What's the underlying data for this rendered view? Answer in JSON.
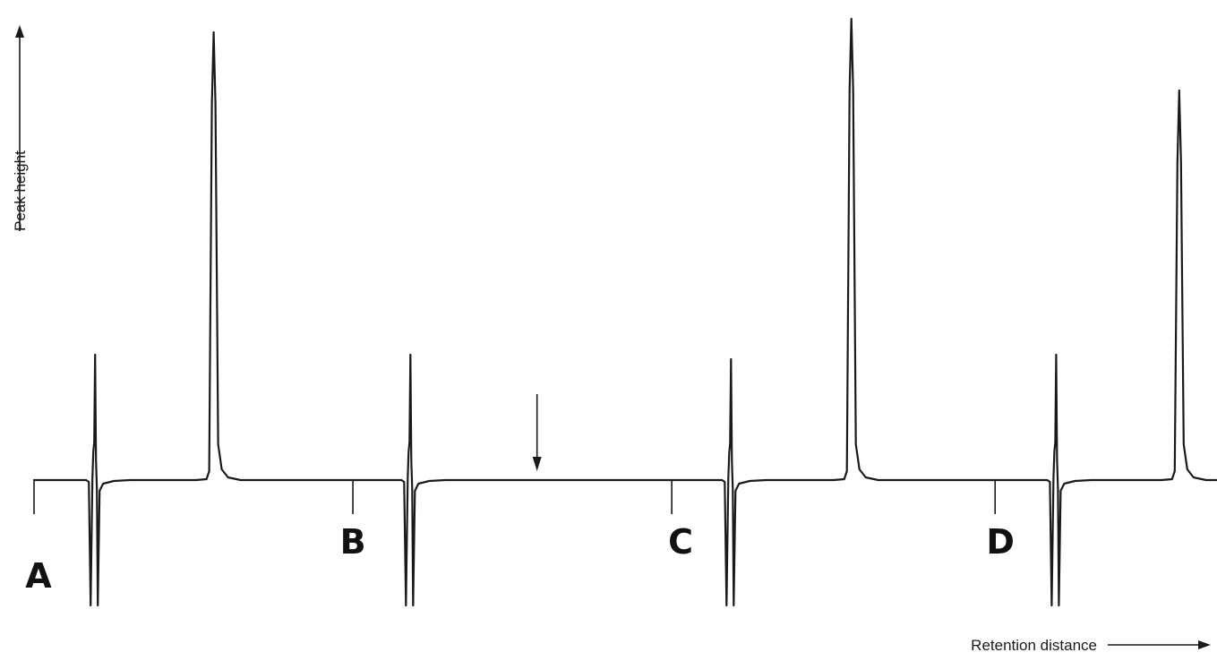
{
  "chart_data": {
    "type": "line",
    "title": "",
    "xlabel": "Retention distance",
    "ylabel": "Peak height",
    "grid": false,
    "legend": "none",
    "markers": [
      {
        "label": "A",
        "x": 0
      },
      {
        "label": "B",
        "x": 35.5
      },
      {
        "label": "C",
        "x": 71
      },
      {
        "label": "D",
        "x": 107
      }
    ],
    "injection_disturbances": [
      {
        "x": 6.7,
        "up": 0.28,
        "down": -0.28
      },
      {
        "x": 41.8,
        "up": 0.28,
        "down": -0.28
      },
      {
        "x": 77.5,
        "up": 0.27,
        "down": -0.28
      },
      {
        "x": 113.7,
        "up": 0.28,
        "down": -0.28
      }
    ],
    "peaks": [
      {
        "x": 20,
        "height": 1.0
      },
      {
        "x": 91,
        "height": 1.03
      },
      {
        "x": 127.5,
        "height": 0.87
      }
    ],
    "annotations": [
      {
        "type": "arrow-down",
        "x": 56
      }
    ]
  }
}
